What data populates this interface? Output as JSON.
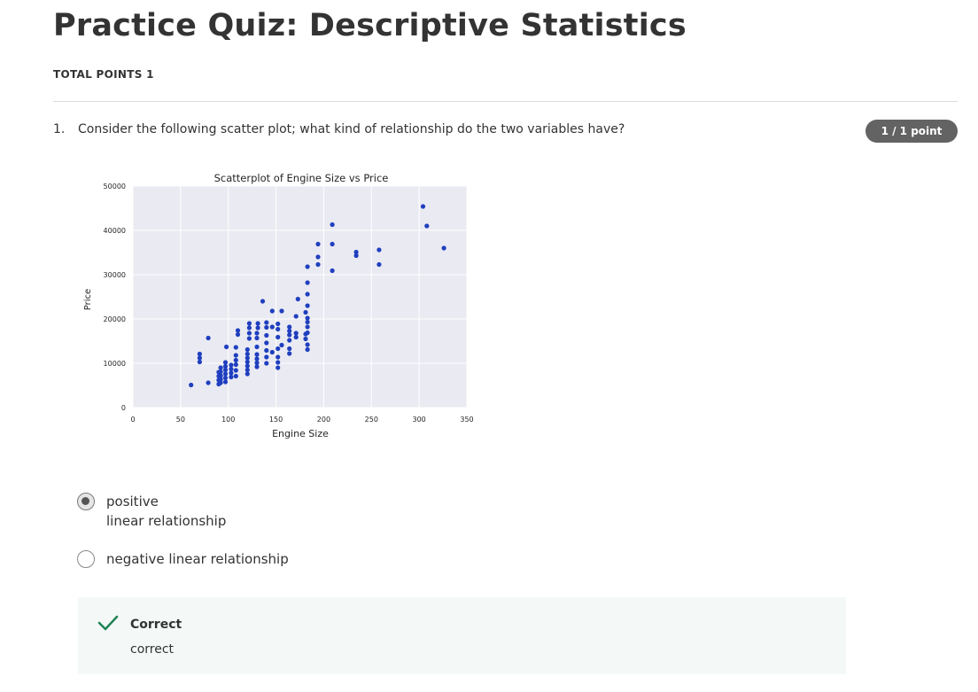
{
  "quiz": {
    "title": "Practice Quiz: Descriptive Statistics",
    "total_points": "TOTAL POINTS 1"
  },
  "question": {
    "number": "1.",
    "text": "Consider the following scatter plot; what kind of relationship do the two variables have?",
    "points_badge": "1 / 1 point",
    "options": [
      {
        "line1": "positive",
        "line2": "linear relationship",
        "selected": true
      },
      {
        "line1": "negative linear relationship",
        "selected": false
      }
    ],
    "feedback": {
      "title": "Correct",
      "text": "correct"
    }
  },
  "colors": {
    "point": "#1f3fbf",
    "plot_bg": "#eaeaf2",
    "correct_green": "#1f8354"
  },
  "chart_data": {
    "type": "scatter",
    "title": "Scatterplot of Engine Size vs Price",
    "xlabel": "Engine Size",
    "ylabel": "Price",
    "xlim": [
      0,
      350
    ],
    "ylim": [
      0,
      50000
    ],
    "x_ticks": [
      "0",
      "50",
      "100",
      "150",
      "200",
      "250",
      "300",
      "350"
    ],
    "y_ticks": [
      "0",
      "10000",
      "20000",
      "30000",
      "40000",
      "50000"
    ],
    "grid": true,
    "points": [
      [
        61,
        5100
      ],
      [
        70,
        10300
      ],
      [
        70,
        11200
      ],
      [
        70,
        12100
      ],
      [
        79,
        5600
      ],
      [
        79,
        15700
      ],
      [
        90,
        5300
      ],
      [
        90,
        6200
      ],
      [
        90,
        7100
      ],
      [
        90,
        8000
      ],
      [
        92,
        5600
      ],
      [
        92,
        6400
      ],
      [
        92,
        7200
      ],
      [
        92,
        8100
      ],
      [
        92,
        9000
      ],
      [
        97,
        5800
      ],
      [
        97,
        6700
      ],
      [
        97,
        7600
      ],
      [
        97,
        8500
      ],
      [
        97,
        9300
      ],
      [
        97,
        10200
      ],
      [
        98,
        13700
      ],
      [
        103,
        6900
      ],
      [
        103,
        7800
      ],
      [
        103,
        8700
      ],
      [
        103,
        9600
      ],
      [
        108,
        7100
      ],
      [
        108,
        8400
      ],
      [
        108,
        9700
      ],
      [
        108,
        10700
      ],
      [
        108,
        11800
      ],
      [
        108,
        13600
      ],
      [
        110,
        16500
      ],
      [
        110,
        17400
      ],
      [
        120,
        7600
      ],
      [
        120,
        8500
      ],
      [
        120,
        9400
      ],
      [
        120,
        10300
      ],
      [
        120,
        11200
      ],
      [
        120,
        12100
      ],
      [
        120,
        13100
      ],
      [
        122,
        15600
      ],
      [
        122,
        16800
      ],
      [
        122,
        18000
      ],
      [
        122,
        19000
      ],
      [
        130,
        9200
      ],
      [
        130,
        10100
      ],
      [
        130,
        11000
      ],
      [
        130,
        12000
      ],
      [
        130,
        13700
      ],
      [
        130,
        15700
      ],
      [
        130,
        16800
      ],
      [
        131,
        18000
      ],
      [
        131,
        19000
      ],
      [
        136,
        24000
      ],
      [
        140,
        10000
      ],
      [
        140,
        11400
      ],
      [
        140,
        12900
      ],
      [
        140,
        14600
      ],
      [
        140,
        16300
      ],
      [
        140,
        18100
      ],
      [
        140,
        19200
      ],
      [
        146,
        12500
      ],
      [
        146,
        18200
      ],
      [
        146,
        21800
      ],
      [
        152,
        9000
      ],
      [
        152,
        10200
      ],
      [
        152,
        11400
      ],
      [
        152,
        13300
      ],
      [
        152,
        15900
      ],
      [
        152,
        17700
      ],
      [
        152,
        18900
      ],
      [
        156,
        21800
      ],
      [
        156,
        14100
      ],
      [
        164,
        12200
      ],
      [
        164,
        13300
      ],
      [
        164,
        15200
      ],
      [
        164,
        17300
      ],
      [
        164,
        18200
      ],
      [
        164,
        16400
      ],
      [
        171,
        15900
      ],
      [
        171,
        16800
      ],
      [
        171,
        20600
      ],
      [
        173,
        24500
      ],
      [
        181,
        15500
      ],
      [
        181,
        16600
      ],
      [
        181,
        21500
      ],
      [
        183,
        31800
      ],
      [
        183,
        13100
      ],
      [
        183,
        14200
      ],
      [
        183,
        16900
      ],
      [
        183,
        18200
      ],
      [
        183,
        19300
      ],
      [
        183,
        20200
      ],
      [
        183,
        23000
      ],
      [
        183,
        25600
      ],
      [
        183,
        28200
      ],
      [
        194,
        32300
      ],
      [
        194,
        34000
      ],
      [
        194,
        36900
      ],
      [
        209,
        30900
      ],
      [
        209,
        36900
      ],
      [
        209,
        41300
      ],
      [
        234,
        34300
      ],
      [
        234,
        35100
      ],
      [
        258,
        35600
      ],
      [
        258,
        32300
      ],
      [
        304,
        45400
      ],
      [
        308,
        41000
      ],
      [
        326,
        36000
      ]
    ]
  }
}
